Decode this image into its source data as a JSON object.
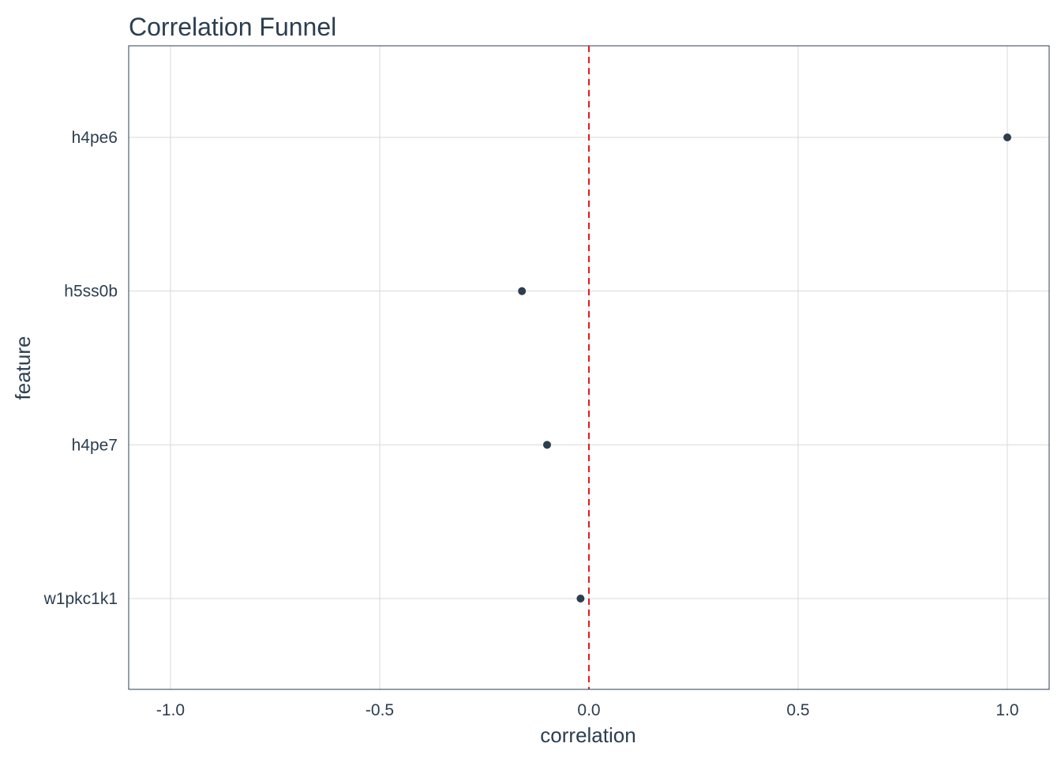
{
  "chart_data": {
    "type": "scatter",
    "title": "Correlation Funnel",
    "xlabel": "correlation",
    "ylabel": "feature",
    "xlim": [
      -1.1,
      1.1
    ],
    "x_ticks": [
      -1.0,
      -0.5,
      0.0,
      0.5,
      1.0
    ],
    "x_tick_labels": [
      "-1.0",
      "-0.5",
      "0.0",
      "0.5",
      "1.0"
    ],
    "categories": [
      "h4pe6",
      "h5ss0b",
      "h4pe7",
      "w1pkc1k1"
    ],
    "values": [
      1.0,
      -0.16,
      -0.1,
      -0.02
    ],
    "reference_line": {
      "x": 0,
      "style": "dashed",
      "color": "#e31a1c"
    },
    "grid": true,
    "legend": "none",
    "colors": {
      "text": "#2c3e50",
      "point": "#2c3e50",
      "grid": "#d9d9d9",
      "panel_border": "#2c3e50"
    }
  }
}
